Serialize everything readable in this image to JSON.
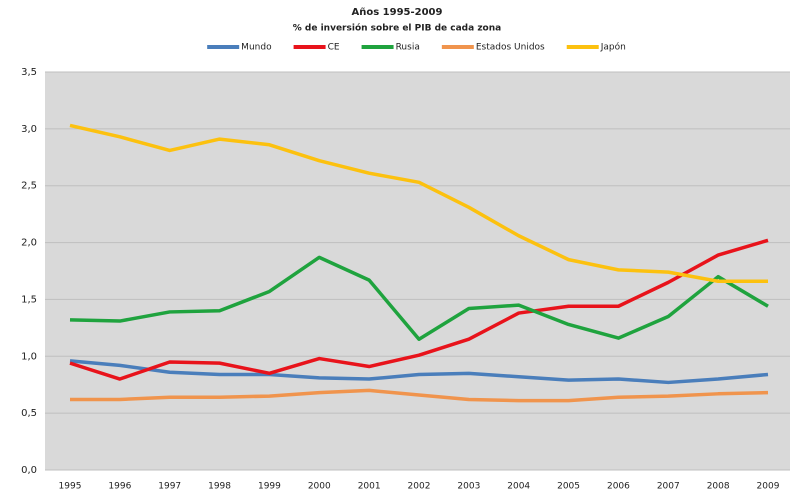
{
  "chart_data": {
    "type": "line",
    "title": "Años 1995-2009",
    "subtitle": "% de inversión sobre el PIB de cada zona",
    "categories": [
      "1995",
      "1996",
      "1997",
      "1998",
      "1999",
      "2000",
      "2001",
      "2002",
      "2003",
      "2004",
      "2005",
      "2006",
      "2007",
      "2008",
      "2009"
    ],
    "series": [
      {
        "name": "Mundo",
        "color": "#4a7ebb",
        "values": [
          0.96,
          0.92,
          0.86,
          0.84,
          0.84,
          0.81,
          0.8,
          0.84,
          0.85,
          0.82,
          0.79,
          0.8,
          0.77,
          0.8,
          0.84
        ]
      },
      {
        "name": "CE",
        "color": "#e8131b",
        "values": [
          0.94,
          0.8,
          0.95,
          0.94,
          0.85,
          0.98,
          0.91,
          1.01,
          1.15,
          1.38,
          1.44,
          1.44,
          1.65,
          1.89,
          2.02
        ]
      },
      {
        "name": "Rusia",
        "color": "#1fa33e",
        "values": [
          1.32,
          1.31,
          1.39,
          1.4,
          1.57,
          1.87,
          1.67,
          1.15,
          1.42,
          1.45,
          1.28,
          1.16,
          1.35,
          1.7,
          1.44
        ]
      },
      {
        "name": "Estados Unidos",
        "color": "#f0944d",
        "values": [
          0.62,
          0.62,
          0.64,
          0.64,
          0.65,
          0.68,
          0.7,
          0.66,
          0.62,
          0.61,
          0.61,
          0.64,
          0.65,
          0.67,
          0.68
        ]
      },
      {
        "name": "Japón",
        "color": "#fcc10f",
        "values": [
          3.03,
          2.93,
          2.81,
          2.91,
          2.86,
          2.72,
          2.61,
          2.53,
          2.31,
          2.06,
          1.85,
          1.76,
          1.74,
          1.66,
          1.66
        ]
      }
    ],
    "ylim": [
      0,
      3.5
    ],
    "yticks": [
      {
        "value": 0,
        "label": "0,0"
      },
      {
        "value": 0.5,
        "label": "0,5"
      },
      {
        "value": 1,
        "label": "1,0"
      },
      {
        "value": 1.5,
        "label": "1,5"
      },
      {
        "value": 2,
        "label": "2,0"
      },
      {
        "value": 2.5,
        "label": "2,5"
      },
      {
        "value": 3,
        "label": "3,0"
      },
      {
        "value": 3.5,
        "label": "3,5"
      }
    ],
    "grid": true,
    "legend": "top"
  }
}
